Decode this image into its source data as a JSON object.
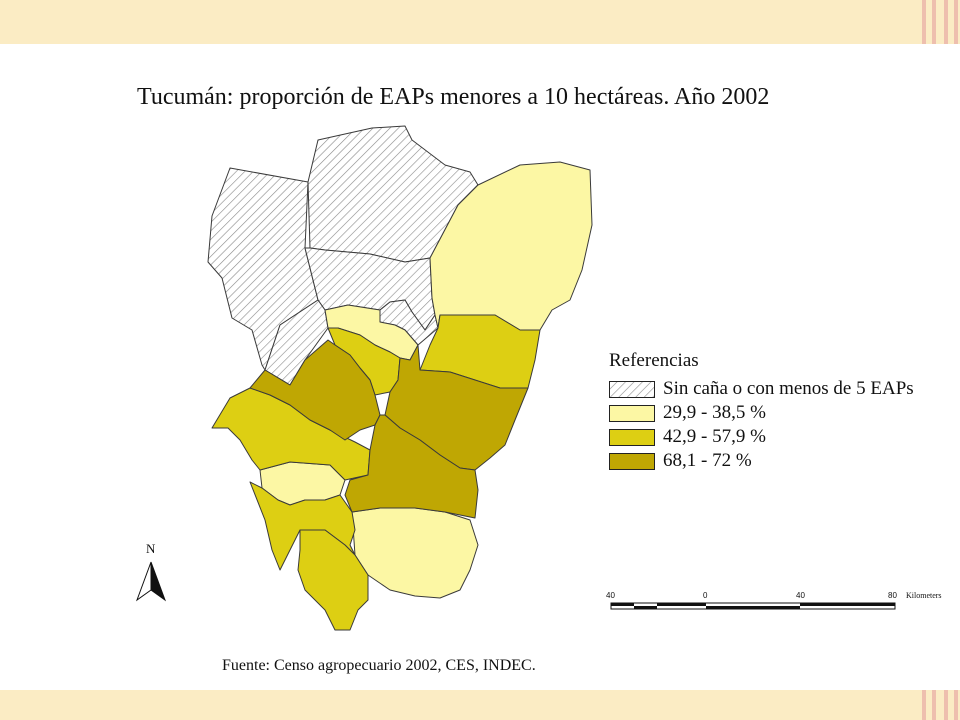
{
  "title": "Tucumán: proporción de EAPs menores a 10 hectáreas. Año 2002",
  "legend": {
    "title": "Referencias",
    "items": [
      {
        "label": "Sin caña o con menos de 5 EAPs",
        "color": "hatch"
      },
      {
        "label": "29,9 - 38,5 %",
        "color": "#fcf7a4"
      },
      {
        "label": "42,9 - 57,9 %",
        "color": "#ddcf13"
      },
      {
        "label": "68,1 - 72 %",
        "color": "#bfa703"
      }
    ]
  },
  "north_arrow": {
    "label": "N",
    "icon": "north-arrow-icon"
  },
  "scale_bar": {
    "ticks": [
      "40",
      "0",
      "40",
      "80"
    ],
    "unit": "Kilometers"
  },
  "source": "Fuente: Censo agropecuario 2002, CES, INDEC.",
  "colors": {
    "band": "#fbecc4",
    "stripe": "#eebfae",
    "hatch": "#8a8a8a"
  }
}
